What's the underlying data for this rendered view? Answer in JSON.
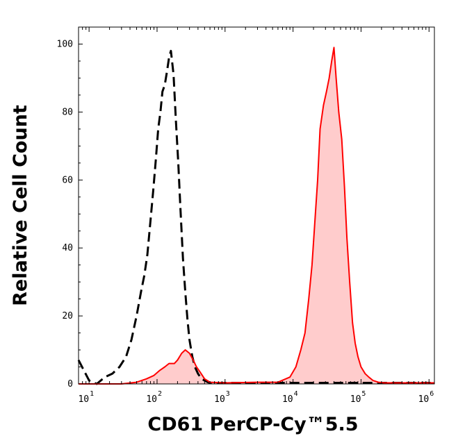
{
  "chart_data": {
    "type": "area",
    "xlabel": "CD61 PerCP-Cy™5.5",
    "ylabel": "Relative Cell Count",
    "x_scale": "log",
    "xlim": [
      7,
      1200000
    ],
    "ylim": [
      0,
      105
    ],
    "grid": false,
    "yticks": [
      0,
      20,
      40,
      60,
      80,
      100
    ],
    "xticks": [
      {
        "base": "10",
        "exp": "1",
        "value": 10
      },
      {
        "base": "10",
        "exp": "2",
        "value": 100
      },
      {
        "base": "10",
        "exp": "3",
        "value": 1000
      },
      {
        "base": "10",
        "exp": "4",
        "value": 10000
      },
      {
        "base": "10",
        "exp": "5",
        "value": 100000
      },
      {
        "base": "10",
        "exp": "6",
        "value": 1000000
      }
    ],
    "series": [
      {
        "style": "dashed",
        "color": "#000000",
        "fill": "none",
        "x": [
          7,
          10,
          13,
          17,
          22,
          28,
          35,
          42,
          50,
          58,
          65,
          72,
          80,
          88,
          96,
          104,
          112,
          120,
          130,
          140,
          150,
          160,
          175,
          190,
          205,
          220,
          240,
          260,
          280,
          300,
          330,
          360,
          400,
          450,
          500,
          560,
          630,
          700,
          800,
          900,
          1000,
          10000,
          30000,
          50000,
          80000,
          120000,
          1200000
        ],
        "y": [
          7,
          1,
          0,
          2,
          3,
          5,
          8,
          13,
          20,
          27,
          32,
          38,
          48,
          57,
          66,
          75,
          80,
          86,
          88,
          92,
          96,
          98,
          91,
          77,
          65,
          52,
          37,
          27,
          19,
          13,
          8,
          5,
          3,
          1.5,
          1,
          0.5,
          0.3,
          0.3,
          0.3,
          0.3,
          0.3,
          0.3,
          0.3,
          0.3,
          0.3,
          0.3,
          0.3
        ]
      },
      {
        "style": "solid",
        "color": "#ff0000",
        "fill": "#ffcccc",
        "x": [
          7,
          30,
          50,
          70,
          90,
          110,
          130,
          150,
          180,
          200,
          230,
          260,
          300,
          340,
          380,
          430,
          500,
          600,
          1000,
          3000,
          6000,
          9000,
          11000,
          13000,
          15000,
          17000,
          19000,
          21000,
          23000,
          25000,
          28000,
          31000,
          34000,
          37000,
          40000,
          43000,
          47000,
          52000,
          57000,
          62000,
          68000,
          75000,
          82000,
          90000,
          100000,
          115000,
          130000,
          150000,
          180000,
          220000,
          300000,
          1200000
        ],
        "y": [
          0,
          0,
          0.5,
          1.5,
          2.5,
          4,
          5,
          6,
          6,
          7,
          9,
          10,
          9,
          7,
          5,
          3.5,
          1.5,
          0.5,
          0.3,
          0.5,
          0.5,
          2,
          5,
          10,
          15,
          25,
          35,
          48,
          60,
          75,
          82,
          86,
          90,
          95,
          99,
          90,
          80,
          72,
          58,
          43,
          30,
          18,
          12,
          8,
          5,
          3,
          2,
          1,
          0.5,
          0.3,
          0.3,
          0.3
        ]
      }
    ]
  }
}
